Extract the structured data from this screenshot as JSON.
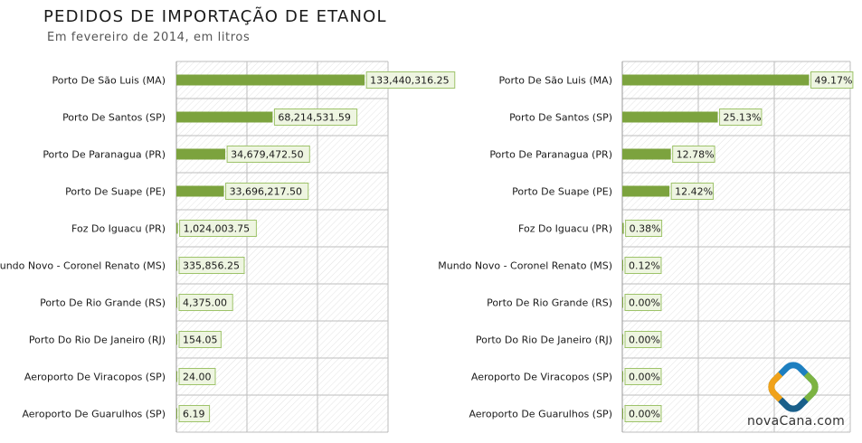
{
  "header": {
    "title": "PEDIDOS DE IMPORTAÇÃO DE ETANOL",
    "subtitle": "Em fevereiro de 2014, em litros"
  },
  "brand": {
    "name": "novaCana.com",
    "icon": "novacana-logo-icon"
  },
  "colors": {
    "bar": "#7ca33e",
    "label_bg": "#eef5e1",
    "label_border": "#9ec36a",
    "grid": "#bdbdbd",
    "hatch": "#e0e0e0"
  },
  "chart_data": [
    {
      "type": "bar",
      "orientation": "horizontal",
      "categories": [
        "Porto De São Luis  (MA)",
        "Porto De Santos  (SP)",
        "Porto De Paranagua  (PR)",
        "Porto De Suape  (PE)",
        "Foz Do Iguacu  (PR)",
        "Mundo Novo - Coronel Renato  (MS)",
        "Porto De Rio Grande  (RS)",
        "Porto Do Rio De Janeiro  (RJ)",
        "Aeroporto De Viracopos  (SP)",
        "Aeroporto De Guarulhos  (SP)"
      ],
      "values": [
        133440316.25,
        68214531.59,
        34679472.5,
        33696217.5,
        1024003.75,
        335856.25,
        4375.0,
        154.05,
        24.0,
        6.19
      ],
      "labels": [
        "133,440,316.25",
        "68,214,531.59",
        "34,679,472.50",
        "33,696,217.50",
        "1,024,003.75",
        "335,856.25",
        "4,375.00",
        "154.05",
        "24.00",
        "6.19"
      ],
      "xlim": [
        0,
        150000000
      ],
      "grid": true
    },
    {
      "type": "bar",
      "orientation": "horizontal",
      "categories": [
        "Porto De São Luis  (MA)",
        "Porto De Santos  (SP)",
        "Porto De Paranagua  (PR)",
        "Porto De Suape  (PE)",
        "Foz Do Iguacu  (PR)",
        "Mundo Novo - Coronel Renato  (MS)",
        "Porto De Rio Grande  (RS)",
        "Porto Do Rio De Janeiro  (RJ)",
        "Aeroporto De Viracopos  (SP)",
        "Aeroporto De Guarulhos  (SP)"
      ],
      "values": [
        49.17,
        25.13,
        12.78,
        12.42,
        0.38,
        0.12,
        0.0,
        0.0,
        0.0,
        0.0
      ],
      "labels": [
        "49.17%",
        "25.13%",
        "12.78%",
        "12.42%",
        "0.38%",
        "0.12%",
        "0.00%",
        "0.00%",
        "0.00%",
        "0.00%"
      ],
      "xlim": [
        0,
        60
      ],
      "grid": true
    }
  ]
}
